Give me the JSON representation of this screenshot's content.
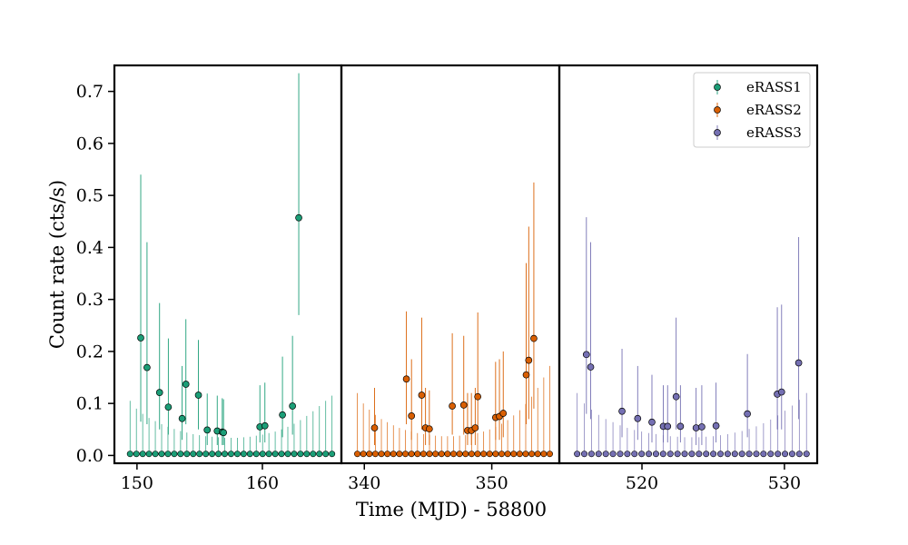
{
  "chart_data": {
    "type": "scatter",
    "xlabel": "Time (MJD) - 58800",
    "ylabel": "Count rate (cts/s)",
    "ylim": [
      -0.015,
      0.75
    ],
    "y_ticks": [
      0.0,
      0.1,
      0.2,
      0.3,
      0.4,
      0.5,
      0.6,
      0.7
    ],
    "y_tick_labels": [
      "0.0",
      "0.1",
      "0.2",
      "0.3",
      "0.4",
      "0.5",
      "0.6",
      "0.7"
    ],
    "grid": false,
    "legend_position": "top-right",
    "panels": [
      {
        "xlim": [
          148.2,
          166.3
        ],
        "x_ticks": [
          150,
          160
        ],
        "x_tick_labels": [
          "150",
          "160"
        ],
        "series_index": 0,
        "upper_limit_values": [
          0.105,
          0.09,
          0.08,
          0.072,
          0.066,
          0.06,
          0.055,
          0.051,
          0.047,
          0.044,
          0.041,
          0.039,
          0.037,
          0.036,
          0.035,
          0.034,
          0.034,
          0.034,
          0.035,
          0.036,
          0.038,
          0.04,
          0.043,
          0.046,
          0.05,
          0.055,
          0.061,
          0.068,
          0.076,
          0.085,
          0.095,
          0.105,
          0.115
        ]
      },
      {
        "xlim": [
          338.2,
          355.3
        ],
        "x_ticks": [
          340,
          350
        ],
        "x_tick_labels": [
          "340",
          "350"
        ],
        "series_index": 1,
        "upper_limit_values": [
          0.12,
          0.1,
          0.088,
          0.078,
          0.07,
          0.064,
          0.058,
          0.053,
          0.049,
          0.046,
          0.043,
          0.041,
          0.039,
          0.038,
          0.037,
          0.037,
          0.037,
          0.038,
          0.039,
          0.041,
          0.043,
          0.046,
          0.05,
          0.055,
          0.061,
          0.068,
          0.077,
          0.087,
          0.099,
          0.113,
          0.13,
          0.15,
          0.172
        ]
      },
      {
        "xlim": [
          514.2,
          532.3
        ],
        "x_ticks": [
          520,
          530
        ],
        "x_tick_labels": [
          "520",
          "530"
        ],
        "series_index": 2,
        "upper_limit_values": [
          0.12,
          0.1,
          0.088,
          0.078,
          0.07,
          0.064,
          0.058,
          0.053,
          0.049,
          0.046,
          0.043,
          0.041,
          0.039,
          0.037,
          0.036,
          0.035,
          0.035,
          0.035,
          0.036,
          0.037,
          0.039,
          0.041,
          0.044,
          0.047,
          0.051,
          0.056,
          0.062,
          0.069,
          0.077,
          0.086,
          0.096,
          0.107,
          0.12
        ]
      }
    ],
    "series": [
      {
        "name": "eRASS1",
        "color": "#1b9e77",
        "points": [
          {
            "x": 150.3,
            "y": 0.226,
            "lo": 0.065,
            "hi": 0.54
          },
          {
            "x": 150.8,
            "y": 0.169,
            "lo": 0.06,
            "hi": 0.41
          },
          {
            "x": 151.8,
            "y": 0.121,
            "lo": 0.05,
            "hi": 0.293
          },
          {
            "x": 152.5,
            "y": 0.093,
            "lo": 0.04,
            "hi": 0.225
          },
          {
            "x": 153.6,
            "y": 0.071,
            "lo": 0.03,
            "hi": 0.172
          },
          {
            "x": 153.9,
            "y": 0.137,
            "lo": 0.06,
            "hi": 0.262
          },
          {
            "x": 154.9,
            "y": 0.116,
            "lo": 0.05,
            "hi": 0.222
          },
          {
            "x": 155.6,
            "y": 0.049,
            "lo": 0.02,
            "hi": 0.119
          },
          {
            "x": 156.4,
            "y": 0.047,
            "lo": 0.02,
            "hi": 0.115
          },
          {
            "x": 156.8,
            "y": 0.045,
            "lo": 0.02,
            "hi": 0.11
          },
          {
            "x": 156.9,
            "y": 0.044,
            "lo": 0.02,
            "hi": 0.108
          },
          {
            "x": 159.8,
            "y": 0.055,
            "lo": 0.025,
            "hi": 0.135
          },
          {
            "x": 160.2,
            "y": 0.057,
            "lo": 0.025,
            "hi": 0.14
          },
          {
            "x": 161.6,
            "y": 0.078,
            "lo": 0.035,
            "hi": 0.19
          },
          {
            "x": 162.4,
            "y": 0.095,
            "lo": 0.04,
            "hi": 0.23
          },
          {
            "x": 162.9,
            "y": 0.457,
            "lo": 0.27,
            "hi": 0.735
          }
        ]
      },
      {
        "name": "eRASS2",
        "color": "#d95f02",
        "points": [
          {
            "x": 340.8,
            "y": 0.053,
            "lo": 0.02,
            "hi": 0.13
          },
          {
            "x": 343.3,
            "y": 0.147,
            "lo": 0.06,
            "hi": 0.277
          },
          {
            "x": 343.7,
            "y": 0.076,
            "lo": 0.03,
            "hi": 0.185
          },
          {
            "x": 344.5,
            "y": 0.116,
            "lo": 0.05,
            "hi": 0.265
          },
          {
            "x": 344.8,
            "y": 0.053,
            "lo": 0.02,
            "hi": 0.13
          },
          {
            "x": 345.1,
            "y": 0.051,
            "lo": 0.02,
            "hi": 0.125
          },
          {
            "x": 346.9,
            "y": 0.095,
            "lo": 0.04,
            "hi": 0.235
          },
          {
            "x": 347.8,
            "y": 0.097,
            "lo": 0.04,
            "hi": 0.23
          },
          {
            "x": 348.1,
            "y": 0.048,
            "lo": 0.02,
            "hi": 0.12
          },
          {
            "x": 348.4,
            "y": 0.048,
            "lo": 0.02,
            "hi": 0.12
          },
          {
            "x": 348.7,
            "y": 0.053,
            "lo": 0.02,
            "hi": 0.13
          },
          {
            "x": 348.9,
            "y": 0.113,
            "lo": 0.05,
            "hi": 0.275
          },
          {
            "x": 350.3,
            "y": 0.073,
            "lo": 0.03,
            "hi": 0.18
          },
          {
            "x": 350.6,
            "y": 0.075,
            "lo": 0.03,
            "hi": 0.185
          },
          {
            "x": 350.9,
            "y": 0.081,
            "lo": 0.035,
            "hi": 0.2
          },
          {
            "x": 352.7,
            "y": 0.155,
            "lo": 0.06,
            "hi": 0.37
          },
          {
            "x": 352.9,
            "y": 0.183,
            "lo": 0.07,
            "hi": 0.44
          },
          {
            "x": 353.3,
            "y": 0.225,
            "lo": 0.09,
            "hi": 0.525
          }
        ]
      },
      {
        "name": "eRASS3",
        "color": "#7570b3",
        "points": [
          {
            "x": 516.1,
            "y": 0.194,
            "lo": 0.08,
            "hi": 0.458
          },
          {
            "x": 516.4,
            "y": 0.17,
            "lo": 0.07,
            "hi": 0.41
          },
          {
            "x": 518.6,
            "y": 0.085,
            "lo": 0.035,
            "hi": 0.205
          },
          {
            "x": 519.7,
            "y": 0.071,
            "lo": 0.03,
            "hi": 0.172
          },
          {
            "x": 520.7,
            "y": 0.064,
            "lo": 0.025,
            "hi": 0.155
          },
          {
            "x": 521.5,
            "y": 0.056,
            "lo": 0.025,
            "hi": 0.135
          },
          {
            "x": 521.8,
            "y": 0.056,
            "lo": 0.025,
            "hi": 0.135
          },
          {
            "x": 522.4,
            "y": 0.113,
            "lo": 0.05,
            "hi": 0.265
          },
          {
            "x": 522.7,
            "y": 0.056,
            "lo": 0.025,
            "hi": 0.135
          },
          {
            "x": 523.8,
            "y": 0.053,
            "lo": 0.02,
            "hi": 0.13
          },
          {
            "x": 524.2,
            "y": 0.055,
            "lo": 0.02,
            "hi": 0.135
          },
          {
            "x": 525.2,
            "y": 0.057,
            "lo": 0.025,
            "hi": 0.14
          },
          {
            "x": 527.4,
            "y": 0.08,
            "lo": 0.035,
            "hi": 0.195
          },
          {
            "x": 529.5,
            "y": 0.118,
            "lo": 0.05,
            "hi": 0.285
          },
          {
            "x": 529.8,
            "y": 0.122,
            "lo": 0.05,
            "hi": 0.29
          },
          {
            "x": 531.0,
            "y": 0.178,
            "lo": 0.07,
            "hi": 0.42
          }
        ]
      }
    ]
  }
}
